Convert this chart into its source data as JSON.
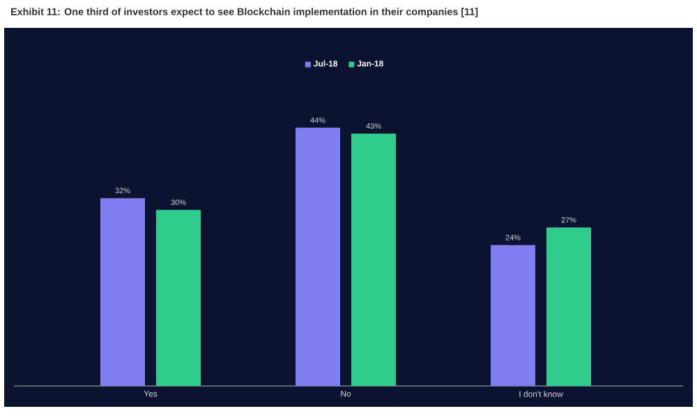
{
  "chart_data": {
    "type": "bar",
    "title": "Exhibit 11: One third of investors expect to see Blockchain implementation in their companies [11]",
    "categories": [
      "Yes",
      "No",
      "I don't know"
    ],
    "series": [
      {
        "name": "Jul-18",
        "color": "#7f7df0",
        "values": [
          32,
          44,
          24
        ],
        "value_labels": [
          "32%",
          "44%",
          "24%"
        ]
      },
      {
        "name": "Jan-18",
        "color": "#2fcc8b",
        "values": [
          30,
          43,
          27
        ],
        "value_labels": [
          "30%",
          "43%",
          "27%"
        ]
      }
    ],
    "legend": "top"
  }
}
